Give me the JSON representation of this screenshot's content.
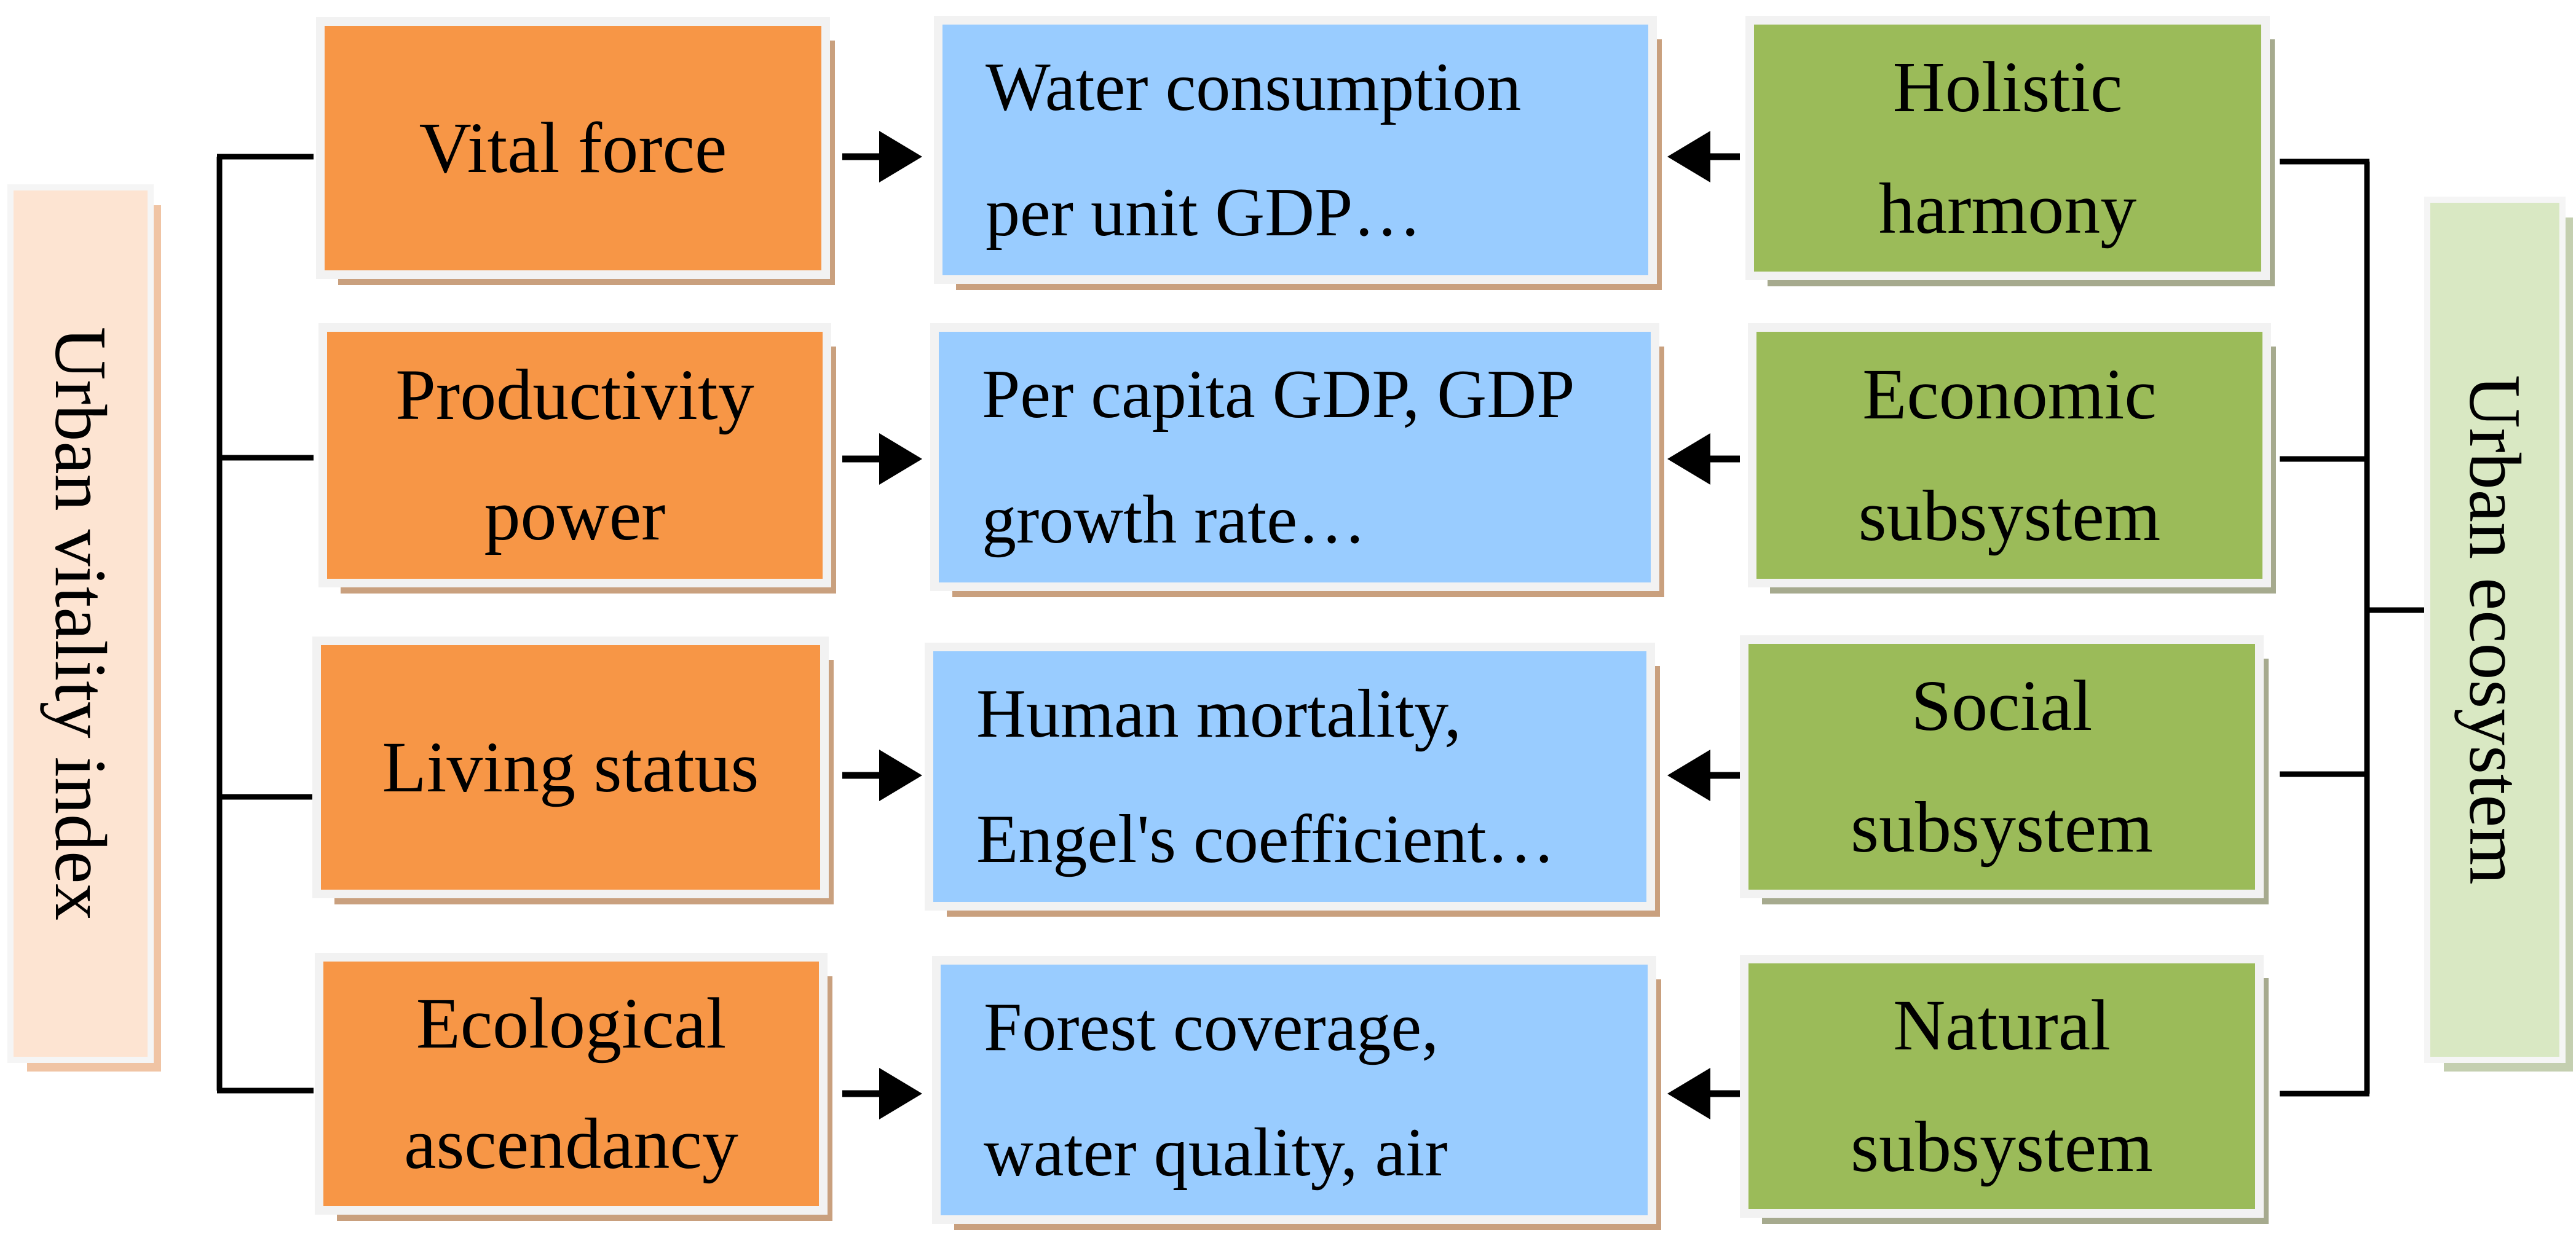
{
  "left_title": "Urban vitality index",
  "right_title": "Urban ecosystem",
  "rows": [
    {
      "left": [
        "Vital force"
      ],
      "middle": [
        "Water consumption",
        "per unit GDP…"
      ],
      "right": [
        "Holistic",
        "harmony"
      ]
    },
    {
      "left": [
        "Productivity",
        "power"
      ],
      "middle": [
        "Per capita GDP, GDP",
        "growth rate…"
      ],
      "right": [
        "Economic",
        "subsystem"
      ]
    },
    {
      "left": [
        "Living status"
      ],
      "middle": [
        "Human mortality,",
        "Engel's coefficient…"
      ],
      "right": [
        "Social",
        "subsystem"
      ]
    },
    {
      "left": [
        "Ecological",
        "ascendancy"
      ],
      "middle": [
        "Forest coverage,",
        "water quality, air"
      ],
      "right": [
        "Natural",
        "subsystem"
      ]
    }
  ],
  "colors": {
    "left_boxes": "#f79646",
    "middle_boxes": "#99ccff",
    "right_boxes": "#9bbb59",
    "left_title_box": "#fde4d2",
    "right_title_box": "#d9e8c3",
    "connector": "#000000"
  }
}
